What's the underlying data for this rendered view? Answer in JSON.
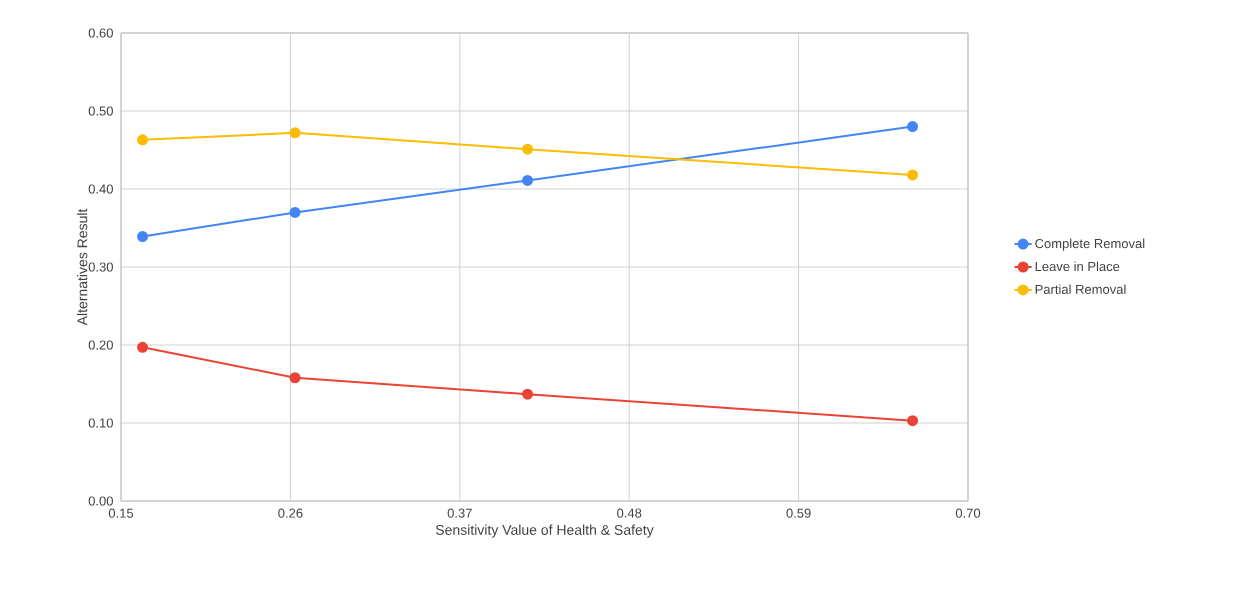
{
  "chart_data": {
    "type": "line",
    "xlabel": "Sensitivity Value of Health & Safety",
    "ylabel": "Alternatives Result",
    "x": [
      0.164,
      0.263,
      0.414,
      0.664
    ],
    "series": [
      {
        "name": "Complete Removal",
        "color": "#4285f4",
        "values": [
          0.339,
          0.37,
          0.411,
          0.48
        ]
      },
      {
        "name": "Leave in Place",
        "color": "#ea4335",
        "values": [
          0.197,
          0.158,
          0.137,
          0.103
        ]
      },
      {
        "name": "Partial Removal",
        "color": "#fbbc04",
        "values": [
          0.463,
          0.472,
          0.451,
          0.418
        ]
      }
    ],
    "xlim": [
      0.15,
      0.7
    ],
    "xticks": [
      {
        "value": 0.15,
        "label": "0.15"
      },
      {
        "value": 0.26,
        "label": "0.26"
      },
      {
        "value": 0.37,
        "label": "0.37"
      },
      {
        "value": 0.48,
        "label": "0.48"
      },
      {
        "value": 0.59,
        "label": "0.59"
      },
      {
        "value": 0.7,
        "label": "0.70"
      }
    ],
    "ylim": [
      0,
      0.6
    ],
    "yticks": [
      {
        "value": 0,
        "label": "0.00"
      },
      {
        "value": 0.1,
        "label": "0.10"
      },
      {
        "value": 0.2,
        "label": "0.20"
      },
      {
        "value": 0.3,
        "label": "0.30"
      },
      {
        "value": 0.4,
        "label": "0.40"
      },
      {
        "value": 0.5,
        "label": "0.50"
      },
      {
        "value": 0.6,
        "label": "0.60"
      }
    ],
    "grid": true,
    "legend": "right",
    "marker": "circle",
    "line_style": "solid"
  }
}
